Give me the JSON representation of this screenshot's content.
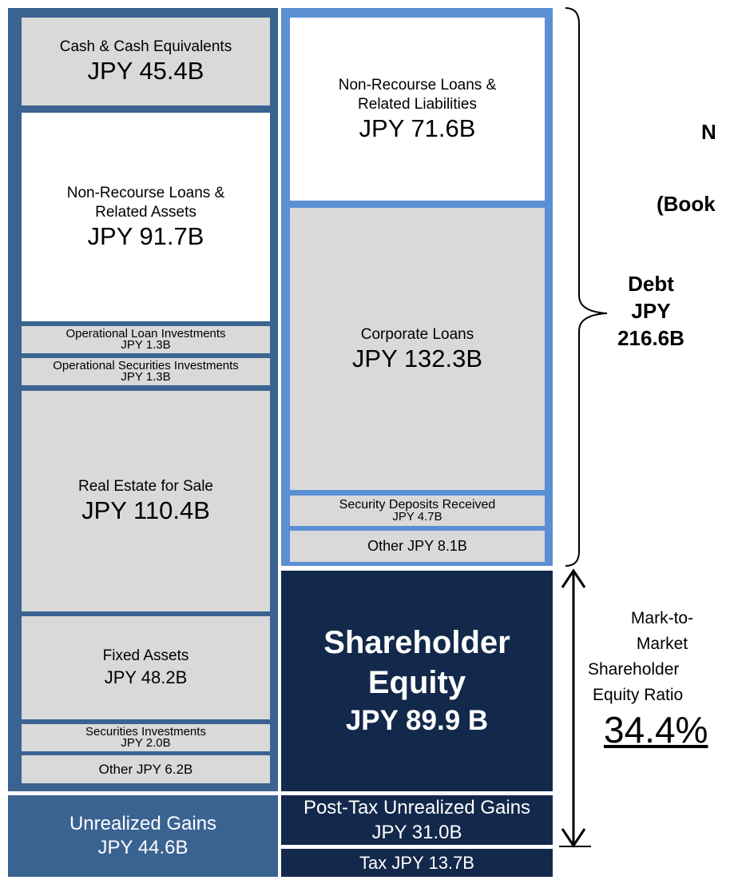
{
  "title_fragments": [
    "N",
    "(Book"
  ],
  "assets": [
    {
      "label": "Cash & Cash Equivalents",
      "value": "JPY 45.4B"
    },
    {
      "label": "Non-Recourse Loans & Related Assets",
      "value": "JPY 91.7B"
    },
    {
      "label": "Operational Loan Investments",
      "value": "JPY 1.3B"
    },
    {
      "label": "Operational Securities Investments",
      "value": "JPY 1.3B"
    },
    {
      "label": "Real Estate for Sale",
      "value": "JPY 110.4B"
    },
    {
      "label": "Fixed Assets",
      "value": "JPY 48.2B"
    },
    {
      "label": "Securities Investments",
      "value": "JPY 2.0B"
    },
    {
      "label": "Other JPY 6.2B"
    }
  ],
  "liabilities": [
    {
      "label": "Non-Recourse Loans & Related Liabilities",
      "value": "JPY 71.6B"
    },
    {
      "label": "Corporate Loans",
      "value": "JPY 132.3B"
    },
    {
      "label": "Security  Deposits Received",
      "value": "JPY 4.7B"
    },
    {
      "label": "Other JPY 8.1B"
    }
  ],
  "equity": {
    "label": "Shareholder Equity",
    "value": "JPY 89.9 B"
  },
  "unrealized": {
    "label": "Unrealized Gains",
    "value": "JPY 44.6B",
    "post_tax": "Post-Tax Unrealized Gains  JPY 31.0B",
    "tax": "Tax JPY 13.7B"
  },
  "debt": {
    "lines": [
      "Debt",
      "JPY",
      "216.6B"
    ]
  },
  "ratio": {
    "lines": [
      "Mark-to-",
      "Market",
      "Shareholder",
      "Equity Ratio"
    ],
    "value": "34.4%"
  }
}
